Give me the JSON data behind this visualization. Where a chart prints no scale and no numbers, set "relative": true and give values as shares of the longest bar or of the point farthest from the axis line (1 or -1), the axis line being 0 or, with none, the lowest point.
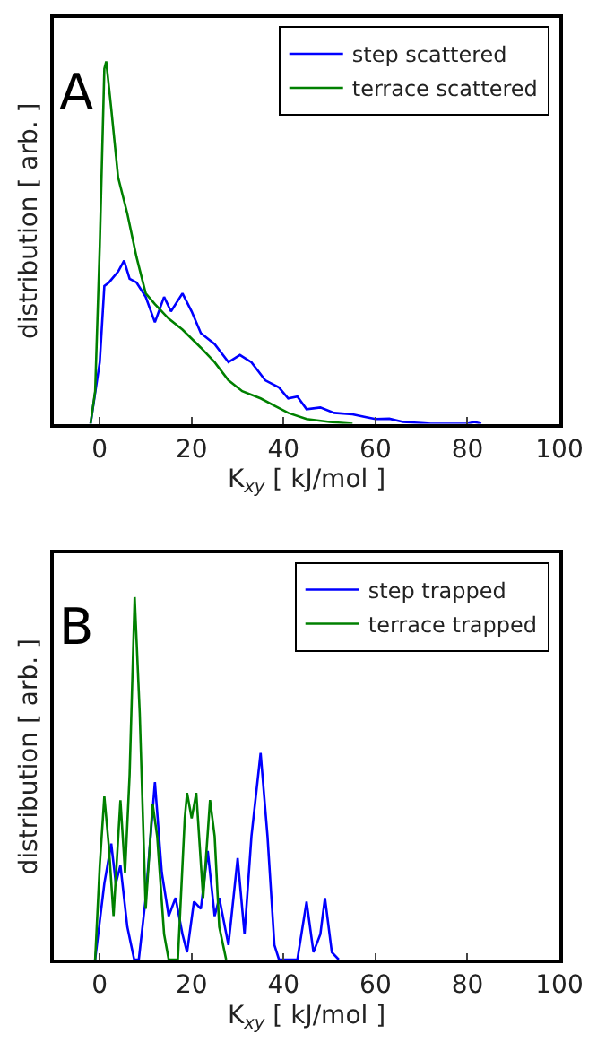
{
  "chart_data": [
    {
      "type": "line",
      "title": "A",
      "xlabel": "K$_{xy}$ [ kJ/mol ]",
      "ylabel": "distribution [ arb. ]",
      "relative": true,
      "xlim": [
        -10,
        100
      ],
      "xticks": [
        0,
        20,
        40,
        60,
        80,
        100
      ],
      "tick_labels": "x",
      "legend": "top right",
      "marker": "none",
      "line_style": "solid",
      "series": [
        {
          "name": "step scattered",
          "color": "#0000ff",
          "x": [
            -2,
            0,
            1,
            2,
            4,
            5.3,
            6.5,
            8,
            10,
            12,
            14,
            15.5,
            18,
            20,
            22,
            25,
            28,
            30.5,
            33,
            36,
            39,
            41,
            43,
            45,
            48,
            51,
            55,
            58,
            60,
            63,
            66,
            70,
            72,
            80,
            81.5,
            83
          ],
          "values": [
            0,
            0.17,
            0.38,
            0.39,
            0.42,
            0.45,
            0.4,
            0.39,
            0.35,
            0.28,
            0.35,
            0.31,
            0.36,
            0.31,
            0.25,
            0.22,
            0.17,
            0.19,
            0.17,
            0.12,
            0.1,
            0.07,
            0.075,
            0.04,
            0.045,
            0.03,
            0.026,
            0.018,
            0.013,
            0.014,
            0.005,
            0.002,
            0,
            0,
            0.005,
            0
          ]
        },
        {
          "name": "terrace scattered",
          "color": "#008000",
          "x": [
            -2,
            -1,
            0,
            1,
            1.4,
            2.5,
            4,
            6,
            8,
            10,
            12,
            15,
            18,
            22,
            25,
            28,
            31,
            35,
            38,
            41,
            45,
            50,
            55
          ],
          "values": [
            0,
            0.09,
            0.49,
            0.98,
            1.0,
            0.87,
            0.68,
            0.58,
            0.46,
            0.36,
            0.33,
            0.29,
            0.26,
            0.21,
            0.17,
            0.12,
            0.09,
            0.07,
            0.05,
            0.03,
            0.013,
            0.005,
            0
          ]
        }
      ]
    },
    {
      "type": "line",
      "title": "B",
      "xlabel": "K$_{xy}$ [ kJ/mol ]",
      "ylabel": "distribution [ arb. ]",
      "relative": true,
      "xlim": [
        -10,
        100
      ],
      "xticks": [
        0,
        20,
        40,
        60,
        80,
        100
      ],
      "tick_labels": "x",
      "legend": "top right",
      "marker": "none",
      "line_style": "solid",
      "series": [
        {
          "name": "step trapped",
          "color": "#0000ff",
          "x": [
            -1,
            1,
            2.5,
            3.5,
            4.5,
            6,
            7.5,
            8.5,
            10,
            12,
            13.5,
            15,
            16.5,
            18,
            19,
            20.5,
            22,
            23.5,
            25,
            26,
            28,
            30,
            31.5,
            33,
            35,
            36.5,
            38,
            39,
            43,
            45,
            46.5,
            48,
            49,
            50.5,
            52
          ],
          "values": [
            0,
            0.21,
            0.32,
            0.21,
            0.26,
            0.09,
            0,
            0,
            0.17,
            0.49,
            0.24,
            0.12,
            0.17,
            0.07,
            0.02,
            0.16,
            0.14,
            0.3,
            0.12,
            0.17,
            0.04,
            0.28,
            0.07,
            0.34,
            0.57,
            0.34,
            0.04,
            0,
            0,
            0.16,
            0.02,
            0.07,
            0.17,
            0.02,
            0
          ]
        },
        {
          "name": "terrace trapped",
          "color": "#008000",
          "x": [
            -1,
            0,
            1,
            2,
            3,
            4.5,
            5.5,
            6.5,
            7.6,
            8.7,
            10,
            11.5,
            12.5,
            14,
            15,
            17,
            18.5,
            19,
            20,
            21,
            22.5,
            24,
            25,
            26,
            27.5
          ],
          "values": [
            0,
            0.26,
            0.45,
            0.31,
            0.12,
            0.44,
            0.24,
            0.51,
            1.0,
            0.68,
            0.14,
            0.43,
            0.34,
            0.07,
            0,
            0,
            0.39,
            0.46,
            0.39,
            0.46,
            0.17,
            0.44,
            0.34,
            0.09,
            0
          ]
        }
      ]
    }
  ]
}
